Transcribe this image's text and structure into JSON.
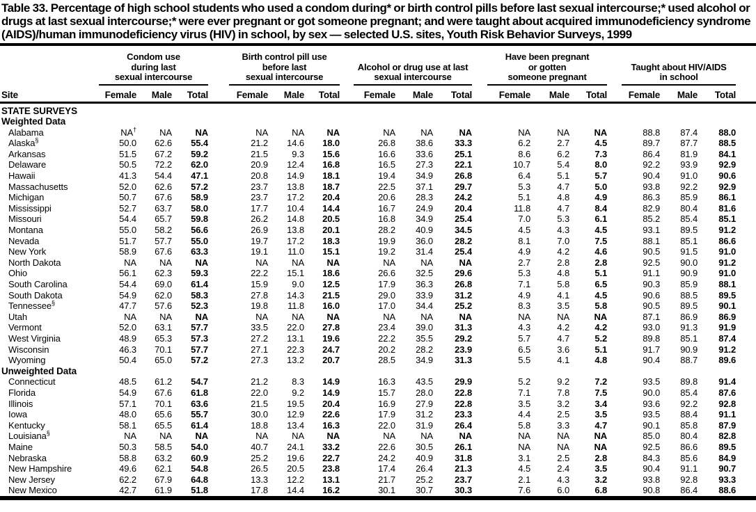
{
  "title": "Table 33. Percentage of high school students who used a condom during* or birth control pills before last sexual intercourse;* used alcohol or drugs at last sexual intercourse;* were ever pregnant or got someone pregnant; and were taught about acquired immunodeficiency syndrome (AIDS)/human immunodeficiency virus (HIV) in school, by sex — selected U.S. sites, Youth Risk Behavior Surveys, 1999",
  "header": {
    "site_label": "Site",
    "column_groups": [
      {
        "lines": [
          "Condom use",
          "during last",
          "sexual intercourse"
        ]
      },
      {
        "lines": [
          "Birth control pill use",
          "before last",
          "sexual intercourse"
        ]
      },
      {
        "lines": [
          "Alcohol or drug use at last",
          "sexual intercourse"
        ]
      },
      {
        "lines": [
          "Have been pregnant",
          "or gotten",
          "someone pregnant"
        ]
      },
      {
        "lines": [
          "Taught about HIV/AIDS",
          "in school"
        ]
      }
    ],
    "sub_columns": [
      "Female",
      "Male",
      "Total"
    ]
  },
  "rows": [
    {
      "type": "section",
      "label": "STATE SURVEYS"
    },
    {
      "type": "section",
      "label": "Weighted Data"
    },
    {
      "type": "data",
      "site": "Alabama",
      "values": [
        "NA†",
        "NA",
        "NA",
        "NA",
        "NA",
        "NA",
        "NA",
        "NA",
        "NA",
        "NA",
        "NA",
        "NA",
        "88.8",
        "87.4",
        "88.0"
      ]
    },
    {
      "type": "data",
      "site": "Alaska",
      "site_sup": "§",
      "values": [
        "50.0",
        "62.6",
        "55.4",
        "21.2",
        "14.6",
        "18.0",
        "26.8",
        "38.6",
        "33.3",
        "6.2",
        "2.7",
        "4.5",
        "89.7",
        "87.7",
        "88.5"
      ]
    },
    {
      "type": "data",
      "site": "Arkansas",
      "values": [
        "51.5",
        "67.2",
        "59.2",
        "21.5",
        "9.3",
        "15.6",
        "16.6",
        "33.6",
        "25.1",
        "8.6",
        "6.2",
        "7.3",
        "86.4",
        "81.9",
        "84.1"
      ]
    },
    {
      "type": "data",
      "site": "Delaware",
      "values": [
        "50.5",
        "72.2",
        "62.0",
        "20.9",
        "12.4",
        "16.8",
        "16.5",
        "27.3",
        "22.1",
        "10.7",
        "5.4",
        "8.0",
        "92.2",
        "93.9",
        "92.9"
      ]
    },
    {
      "type": "data",
      "site": "Hawaii",
      "values": [
        "41.3",
        "54.4",
        "47.1",
        "20.8",
        "14.9",
        "18.1",
        "19.4",
        "34.9",
        "26.8",
        "6.4",
        "5.1",
        "5.7",
        "90.4",
        "91.0",
        "90.6"
      ]
    },
    {
      "type": "data",
      "site": "Massachusetts",
      "values": [
        "52.0",
        "62.6",
        "57.2",
        "23.7",
        "13.8",
        "18.7",
        "22.5",
        "37.1",
        "29.7",
        "5.3",
        "4.7",
        "5.0",
        "93.8",
        "92.2",
        "92.9"
      ]
    },
    {
      "type": "data",
      "site": "Michigan",
      "values": [
        "50.7",
        "67.6",
        "58.9",
        "23.7",
        "17.2",
        "20.4",
        "20.6",
        "28.3",
        "24.2",
        "5.1",
        "4.8",
        "4.9",
        "86.3",
        "85.9",
        "86.1"
      ]
    },
    {
      "type": "data",
      "site": "Mississippi",
      "values": [
        "52.7",
        "63.7",
        "58.0",
        "17.7",
        "10.4",
        "14.4",
        "16.7",
        "24.9",
        "20.4",
        "11.8",
        "4.7",
        "8.4",
        "82.9",
        "80.4",
        "81.6"
      ]
    },
    {
      "type": "data",
      "site": "Missouri",
      "values": [
        "54.4",
        "65.7",
        "59.8",
        "26.2",
        "14.8",
        "20.5",
        "16.8",
        "34.9",
        "25.4",
        "7.0",
        "5.3",
        "6.1",
        "85.2",
        "85.4",
        "85.1"
      ]
    },
    {
      "type": "data",
      "site": "Montana",
      "values": [
        "55.0",
        "58.2",
        "56.6",
        "26.9",
        "13.8",
        "20.1",
        "28.2",
        "40.9",
        "34.5",
        "4.5",
        "4.3",
        "4.5",
        "93.1",
        "89.5",
        "91.2"
      ]
    },
    {
      "type": "data",
      "site": "Nevada",
      "values": [
        "51.7",
        "57.7",
        "55.0",
        "19.7",
        "17.2",
        "18.3",
        "19.9",
        "36.0",
        "28.2",
        "8.1",
        "7.0",
        "7.5",
        "88.1",
        "85.1",
        "86.6"
      ]
    },
    {
      "type": "data",
      "site": "New York",
      "values": [
        "58.9",
        "67.6",
        "63.3",
        "19.1",
        "11.0",
        "15.1",
        "19.2",
        "31.4",
        "25.4",
        "4.9",
        "4.2",
        "4.6",
        "90.5",
        "91.5",
        "91.0"
      ]
    },
    {
      "type": "data",
      "site": "North Dakota",
      "values": [
        "NA",
        "NA",
        "NA",
        "NA",
        "NA",
        "NA",
        "NA",
        "NA",
        "NA",
        "2.7",
        "2.8",
        "2.8",
        "92.5",
        "90.0",
        "91.2"
      ]
    },
    {
      "type": "data",
      "site": "Ohio",
      "values": [
        "56.1",
        "62.3",
        "59.3",
        "22.2",
        "15.1",
        "18.6",
        "26.6",
        "32.5",
        "29.6",
        "5.3",
        "4.8",
        "5.1",
        "91.1",
        "90.9",
        "91.0"
      ]
    },
    {
      "type": "data",
      "site": "South Carolina",
      "values": [
        "54.4",
        "69.0",
        "61.4",
        "15.9",
        "9.0",
        "12.5",
        "17.9",
        "36.3",
        "26.8",
        "7.1",
        "5.8",
        "6.5",
        "90.3",
        "85.9",
        "88.1"
      ]
    },
    {
      "type": "data",
      "site": "South Dakota",
      "values": [
        "54.9",
        "62.0",
        "58.3",
        "27.8",
        "14.3",
        "21.5",
        "29.0",
        "33.9",
        "31.2",
        "4.9",
        "4.1",
        "4.5",
        "90.6",
        "88.5",
        "89.5"
      ]
    },
    {
      "type": "data",
      "site": "Tennessee",
      "site_sup": "§",
      "values": [
        "47.7",
        "57.6",
        "52.3",
        "19.8",
        "11.8",
        "16.0",
        "17.0",
        "34.4",
        "25.2",
        "8.3",
        "3.5",
        "5.8",
        "90.5",
        "89.5",
        "90.1"
      ]
    },
    {
      "type": "data",
      "site": "Utah",
      "values": [
        "NA",
        "NA",
        "NA",
        "NA",
        "NA",
        "NA",
        "NA",
        "NA",
        "NA",
        "NA",
        "NA",
        "NA",
        "87.1",
        "86.9",
        "86.9"
      ]
    },
    {
      "type": "data",
      "site": "Vermont",
      "values": [
        "52.0",
        "63.1",
        "57.7",
        "33.5",
        "22.0",
        "27.8",
        "23.4",
        "39.0",
        "31.3",
        "4.3",
        "4.2",
        "4.2",
        "93.0",
        "91.3",
        "91.9"
      ]
    },
    {
      "type": "data",
      "site": "West Virginia",
      "values": [
        "48.9",
        "65.3",
        "57.3",
        "27.2",
        "13.1",
        "19.6",
        "22.2",
        "35.5",
        "29.2",
        "5.7",
        "4.7",
        "5.2",
        "89.8",
        "85.1",
        "87.4"
      ]
    },
    {
      "type": "data",
      "site": "Wisconsin",
      "values": [
        "46.3",
        "70.1",
        "57.7",
        "27.1",
        "22.3",
        "24.7",
        "20.2",
        "28.2",
        "23.9",
        "6.5",
        "3.6",
        "5.1",
        "91.7",
        "90.9",
        "91.2"
      ]
    },
    {
      "type": "data",
      "site": "Wyoming",
      "values": [
        "50.4",
        "65.0",
        "57.2",
        "27.3",
        "13.2",
        "20.7",
        "28.5",
        "34.9",
        "31.3",
        "5.5",
        "4.1",
        "4.8",
        "90.4",
        "88.7",
        "89.6"
      ]
    },
    {
      "type": "section",
      "label": "Unweighted Data"
    },
    {
      "type": "data",
      "site": "Connecticut",
      "values": [
        "48.5",
        "61.2",
        "54.7",
        "21.2",
        "8.3",
        "14.9",
        "16.3",
        "43.5",
        "29.9",
        "5.2",
        "9.2",
        "7.2",
        "93.5",
        "89.8",
        "91.4"
      ]
    },
    {
      "type": "data",
      "site": "Florida",
      "values": [
        "54.9",
        "67.6",
        "61.8",
        "22.0",
        "9.2",
        "14.9",
        "15.7",
        "28.0",
        "22.8",
        "7.1",
        "7.8",
        "7.5",
        "90.0",
        "85.4",
        "87.6"
      ]
    },
    {
      "type": "data",
      "site": "Illinois",
      "values": [
        "57.1",
        "70.1",
        "63.6",
        "21.5",
        "19.5",
        "20.4",
        "16.9",
        "27.9",
        "22.8",
        "3.5",
        "3.2",
        "3.4",
        "93.6",
        "92.2",
        "92.8"
      ]
    },
    {
      "type": "data",
      "site": "Iowa",
      "values": [
        "48.0",
        "65.6",
        "55.7",
        "30.0",
        "12.9",
        "22.6",
        "17.9",
        "31.2",
        "23.3",
        "4.4",
        "2.5",
        "3.5",
        "93.5",
        "88.4",
        "91.1"
      ]
    },
    {
      "type": "data",
      "site": "Kentucky",
      "values": [
        "58.1",
        "65.5",
        "61.4",
        "18.8",
        "13.4",
        "16.3",
        "22.0",
        "31.9",
        "26.4",
        "5.8",
        "3.3",
        "4.7",
        "90.1",
        "85.8",
        "87.9"
      ]
    },
    {
      "type": "data",
      "site": "Louisiana",
      "site_sup": "§",
      "values": [
        "NA",
        "NA",
        "NA",
        "NA",
        "NA",
        "NA",
        "NA",
        "NA",
        "NA",
        "NA",
        "NA",
        "NA",
        "85.0",
        "80.4",
        "82.8"
      ]
    },
    {
      "type": "data",
      "site": "Maine",
      "values": [
        "50.3",
        "58.5",
        "54.0",
        "40.7",
        "24.1",
        "33.2",
        "22.6",
        "30.5",
        "26.1",
        "NA",
        "NA",
        "NA",
        "92.5",
        "86.6",
        "89.5"
      ]
    },
    {
      "type": "data",
      "site": "Nebraska",
      "values": [
        "58.8",
        "63.2",
        "60.9",
        "25.2",
        "19.6",
        "22.7",
        "24.2",
        "40.9",
        "31.8",
        "3.1",
        "2.5",
        "2.8",
        "84.3",
        "85.6",
        "84.9"
      ]
    },
    {
      "type": "data",
      "site": "New Hampshire",
      "values": [
        "49.6",
        "62.1",
        "54.8",
        "26.5",
        "20.5",
        "23.8",
        "17.4",
        "26.4",
        "21.3",
        "4.5",
        "2.4",
        "3.5",
        "90.4",
        "91.1",
        "90.7"
      ]
    },
    {
      "type": "data",
      "site": "New Jersey",
      "values": [
        "62.2",
        "67.9",
        "64.8",
        "13.3",
        "12.2",
        "13.1",
        "21.7",
        "25.2",
        "23.7",
        "2.1",
        "4.3",
        "3.2",
        "93.8",
        "92.8",
        "93.3"
      ]
    },
    {
      "type": "data",
      "site": "New Mexico",
      "values": [
        "42.7",
        "61.9",
        "51.8",
        "17.8",
        "14.4",
        "16.2",
        "30.1",
        "30.7",
        "30.3",
        "7.6",
        "6.0",
        "6.8",
        "90.8",
        "86.4",
        "88.6"
      ]
    }
  ]
}
